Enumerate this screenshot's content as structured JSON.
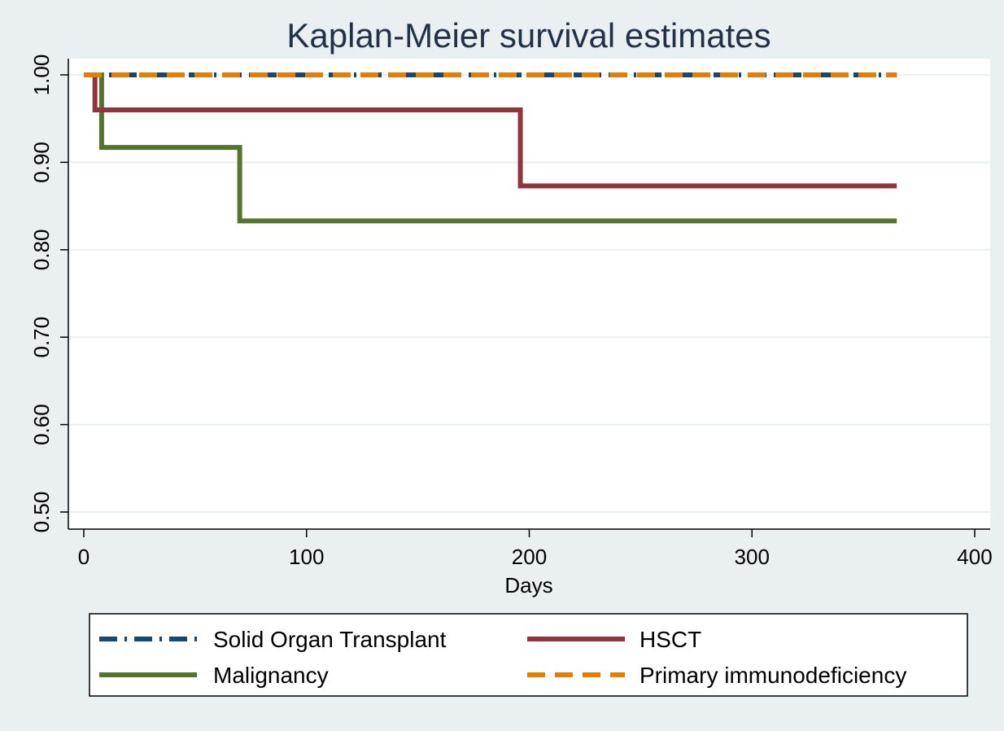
{
  "chart_data": {
    "type": "line",
    "step": true,
    "title": "Kaplan-Meier survival estimates",
    "xlabel": "Days",
    "ylabel": "",
    "xlim": [
      0,
      400
    ],
    "ylim": [
      0.5,
      1.0
    ],
    "xticks": [
      "0",
      "100",
      "200",
      "300",
      "400"
    ],
    "xtick_values": [
      0,
      100,
      200,
      300,
      400
    ],
    "yticks": [
      "0.50",
      "0.60",
      "0.70",
      "0.80",
      "0.90",
      "1.00"
    ],
    "ytick_values": [
      0.5,
      0.6,
      0.7,
      0.8,
      0.9,
      1.0
    ],
    "grid": true,
    "legend_position": "bottom",
    "series": [
      {
        "name": "Solid Organ Transplant",
        "color": "#1a476f",
        "style": "dash-dot",
        "x": [
          0,
          365
        ],
        "y": [
          1.0,
          1.0
        ]
      },
      {
        "name": "HSCT",
        "color": "#90353b",
        "style": "solid",
        "x": [
          0,
          5,
          196,
          365
        ],
        "y": [
          1.0,
          0.96,
          0.873,
          0.873
        ]
      },
      {
        "name": "Malignancy",
        "color": "#55752f",
        "style": "solid",
        "x": [
          0,
          8,
          70,
          365
        ],
        "y": [
          1.0,
          0.917,
          0.833,
          0.833
        ]
      },
      {
        "name": "Primary immunodeficiency",
        "color": "#e37e00",
        "style": "dash",
        "x": [
          0,
          365
        ],
        "y": [
          1.0,
          1.0
        ]
      }
    ]
  }
}
